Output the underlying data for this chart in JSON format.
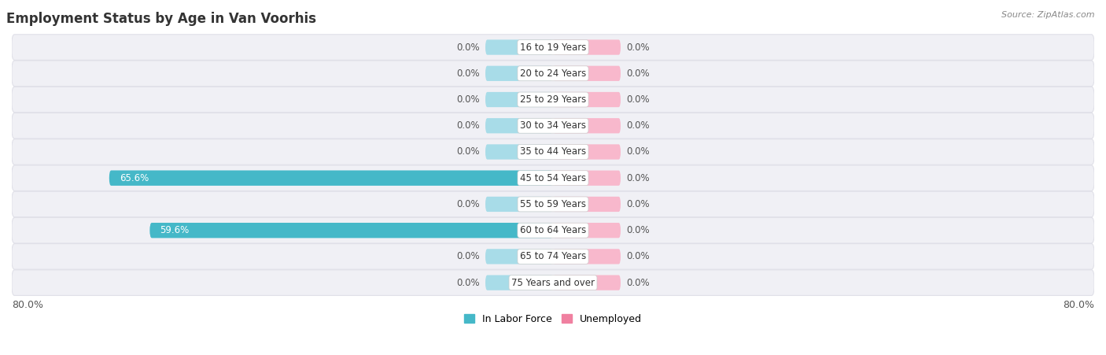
{
  "title": "Employment Status by Age in Van Voorhis",
  "source_text": "Source: ZipAtlas.com",
  "categories": [
    "16 to 19 Years",
    "20 to 24 Years",
    "25 to 29 Years",
    "30 to 34 Years",
    "35 to 44 Years",
    "45 to 54 Years",
    "55 to 59 Years",
    "60 to 64 Years",
    "65 to 74 Years",
    "75 Years and over"
  ],
  "labor_force": [
    0.0,
    0.0,
    0.0,
    0.0,
    0.0,
    65.6,
    0.0,
    59.6,
    0.0,
    0.0
  ],
  "unemployed": [
    0.0,
    0.0,
    0.0,
    0.0,
    0.0,
    0.0,
    0.0,
    0.0,
    0.0,
    0.0
  ],
  "labor_force_color": "#45b8c8",
  "labor_force_bg_color": "#a8dce8",
  "unemployed_color": "#f080a0",
  "unemployed_bg_color": "#f8b8cc",
  "row_bg_color": "#f0f0f5",
  "row_border_color": "#e0e0e8",
  "xlim": 80.0,
  "bg_bar_width": 10.0,
  "bar_height": 0.58,
  "title_fontsize": 12,
  "source_fontsize": 8,
  "label_fontsize": 8.5,
  "cat_fontsize": 8.5,
  "tick_fontsize": 9,
  "legend_fontsize": 9
}
